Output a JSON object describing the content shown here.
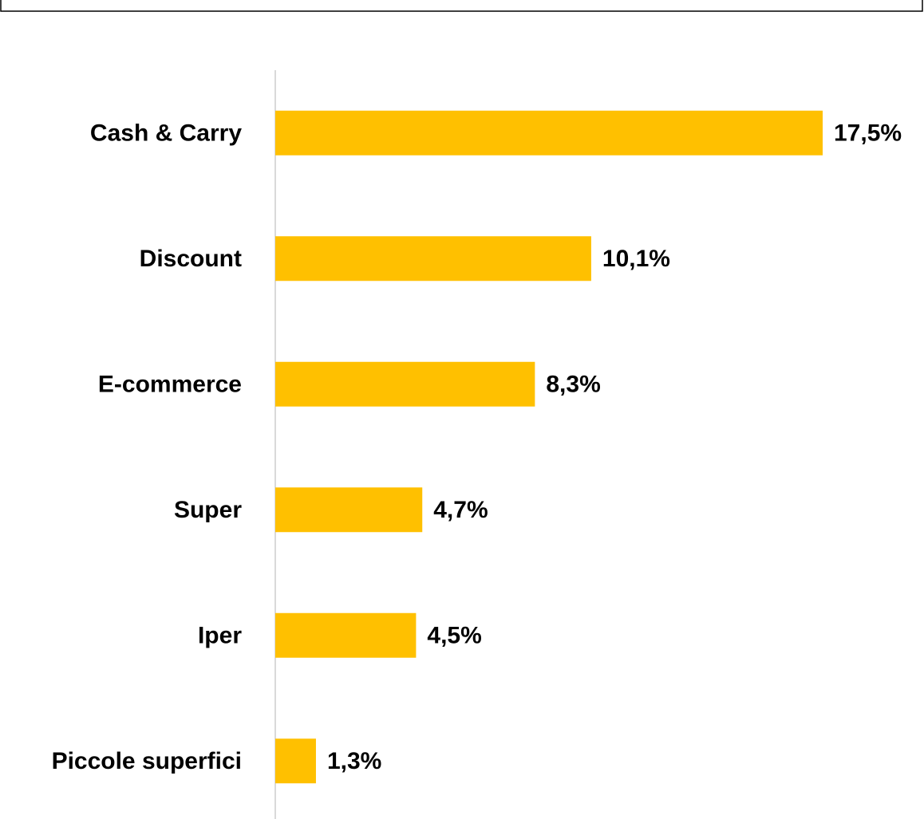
{
  "chart_data": {
    "type": "bar",
    "orientation": "horizontal",
    "categories": [
      "Cash & Carry",
      "Discount",
      "E-commerce",
      "Super",
      "Iper",
      "Piccole superfici"
    ],
    "values": [
      17.5,
      10.1,
      8.3,
      4.7,
      4.5,
      1.3
    ],
    "value_labels": [
      "17,5%",
      "10,1%",
      "8,3%",
      "4,7%",
      "4,5%",
      "1,3%"
    ],
    "color": "#FFC000",
    "xlim": [
      0,
      20
    ]
  }
}
